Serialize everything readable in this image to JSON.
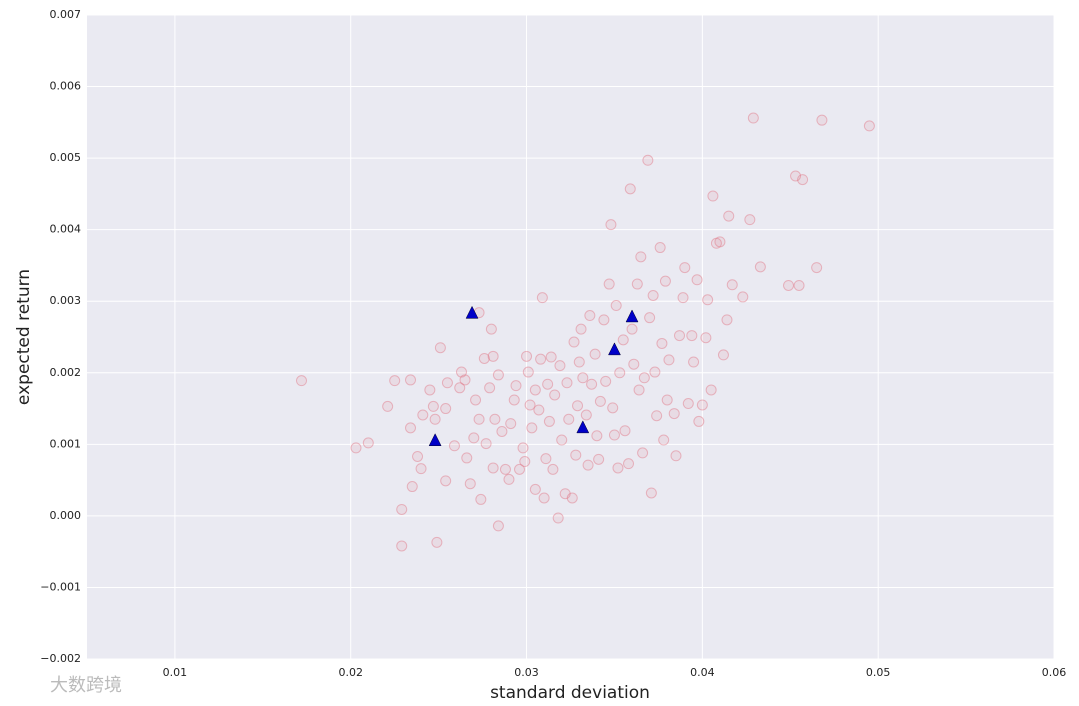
{
  "chart_data": {
    "type": "scatter",
    "xlabel": "standard deviation",
    "ylabel": "expected return",
    "xlim": [
      0.005,
      0.06
    ],
    "ylim": [
      -0.002,
      0.007
    ],
    "xticks": [
      0.01,
      0.02,
      0.03,
      0.04,
      0.05,
      0.06
    ],
    "yticks": [
      {
        "value": -0.002,
        "label": "−0.002"
      },
      {
        "value": -0.001,
        "label": "−0.001"
      },
      {
        "value": 0,
        "label": "0.000"
      },
      0.001,
      0.002,
      0.003,
      0.004,
      0.005,
      0.006,
      0.007
    ],
    "grid": true,
    "series": [
      {
        "marker": "circle",
        "color": "#e07080",
        "x": [
          0.0172,
          0.0203,
          0.021,
          0.0221,
          0.0225,
          0.0234,
          0.0229,
          0.0229,
          0.0235,
          0.0238,
          0.024,
          0.0241,
          0.0234,
          0.0245,
          0.0247,
          0.0248,
          0.0251,
          0.0249,
          0.0254,
          0.0254,
          0.0255,
          0.0259,
          0.0262,
          0.0263,
          0.0265,
          0.0266,
          0.0268,
          0.027,
          0.0271,
          0.0273,
          0.0273,
          0.0274,
          0.0276,
          0.0277,
          0.0279,
          0.028,
          0.0281,
          0.0281,
          0.0282,
          0.0284,
          0.0284,
          0.0286,
          0.0288,
          0.029,
          0.0291,
          0.0293,
          0.0294,
          0.0296,
          0.0298,
          0.0299,
          0.03,
          0.0301,
          0.0302,
          0.0303,
          0.0305,
          0.0305,
          0.0307,
          0.0308,
          0.0309,
          0.031,
          0.0311,
          0.0312,
          0.0313,
          0.0314,
          0.0315,
          0.0316,
          0.0318,
          0.0319,
          0.032,
          0.0322,
          0.0323,
          0.0324,
          0.0326,
          0.0327,
          0.0328,
          0.0329,
          0.033,
          0.0331,
          0.0332,
          0.0334,
          0.0335,
          0.0336,
          0.0337,
          0.0339,
          0.034,
          0.0341,
          0.0342,
          0.0344,
          0.0345,
          0.0347,
          0.0348,
          0.0349,
          0.035,
          0.0351,
          0.0352,
          0.0353,
          0.0355,
          0.0356,
          0.0358,
          0.0359,
          0.036,
          0.0361,
          0.0363,
          0.0364,
          0.0365,
          0.0366,
          0.0367,
          0.0369,
          0.037,
          0.0371,
          0.0372,
          0.0373,
          0.0374,
          0.0376,
          0.0377,
          0.0378,
          0.0379,
          0.038,
          0.0381,
          0.0384,
          0.0385,
          0.0387,
          0.0389,
          0.039,
          0.0392,
          0.0394,
          0.0395,
          0.0397,
          0.0398,
          0.04,
          0.0402,
          0.0403,
          0.0405,
          0.0406,
          0.0408,
          0.041,
          0.0412,
          0.0414,
          0.0415,
          0.0417,
          0.0423,
          0.0427,
          0.0429,
          0.0433,
          0.0449,
          0.0453,
          0.0455,
          0.0457,
          0.0465,
          0.0468,
          0.0495
        ],
        "values": [
          0.00189,
          0.00095,
          0.00102,
          0.00153,
          0.00189,
          0.0019,
          -0.00042,
          9e-05,
          0.00041,
          0.00083,
          0.00066,
          0.00141,
          0.00123,
          0.00176,
          0.00153,
          0.00135,
          0.00235,
          -0.00037,
          0.00049,
          0.0015,
          0.00186,
          0.00098,
          0.00179,
          0.00201,
          0.0019,
          0.00081,
          0.00045,
          0.00109,
          0.00162,
          0.00284,
          0.00135,
          0.00023,
          0.0022,
          0.00101,
          0.00179,
          0.00261,
          0.00067,
          0.00223,
          0.00135,
          0.00197,
          -0.00014,
          0.00118,
          0.00065,
          0.00051,
          0.00129,
          0.00162,
          0.00182,
          0.00065,
          0.00095,
          0.00076,
          0.00223,
          0.00201,
          0.00155,
          0.00123,
          0.00176,
          0.00037,
          0.00148,
          0.00219,
          0.00305,
          0.00025,
          0.0008,
          0.00184,
          0.00132,
          0.00222,
          0.00065,
          0.00169,
          -3e-05,
          0.0021,
          0.00106,
          0.00031,
          0.00186,
          0.00135,
          0.00025,
          0.00243,
          0.00085,
          0.00154,
          0.00215,
          0.00261,
          0.00193,
          0.00141,
          0.00071,
          0.0028,
          0.00184,
          0.00226,
          0.00112,
          0.00079,
          0.0016,
          0.00274,
          0.00188,
          0.00324,
          0.00407,
          0.00151,
          0.00113,
          0.00294,
          0.00067,
          0.002,
          0.00246,
          0.00119,
          0.00073,
          0.00457,
          0.00261,
          0.00212,
          0.00324,
          0.00176,
          0.00362,
          0.00088,
          0.00193,
          0.00497,
          0.00277,
          0.00032,
          0.00308,
          0.00201,
          0.0014,
          0.00375,
          0.00241,
          0.00106,
          0.00328,
          0.00162,
          0.00218,
          0.00143,
          0.00084,
          0.00252,
          0.00305,
          0.00347,
          0.00157,
          0.00252,
          0.00215,
          0.0033,
          0.00132,
          0.00155,
          0.00249,
          0.00302,
          0.00176,
          0.00447,
          0.00381,
          0.00383,
          0.00225,
          0.00274,
          0.00419,
          0.00323,
          0.00306,
          0.00414,
          0.00556,
          0.00348,
          0.00322,
          0.00475,
          0.00322,
          0.0047,
          0.00347,
          0.00553,
          0.00545
        ]
      },
      {
        "marker": "triangle",
        "color": "#0000c8",
        "x": [
          0.0248,
          0.0269,
          0.035,
          0.0332,
          0.036
        ],
        "values": [
          0.00105,
          0.00283,
          0.00232,
          0.00123,
          0.00278
        ]
      }
    ],
    "watermark": "大数跨境"
  }
}
